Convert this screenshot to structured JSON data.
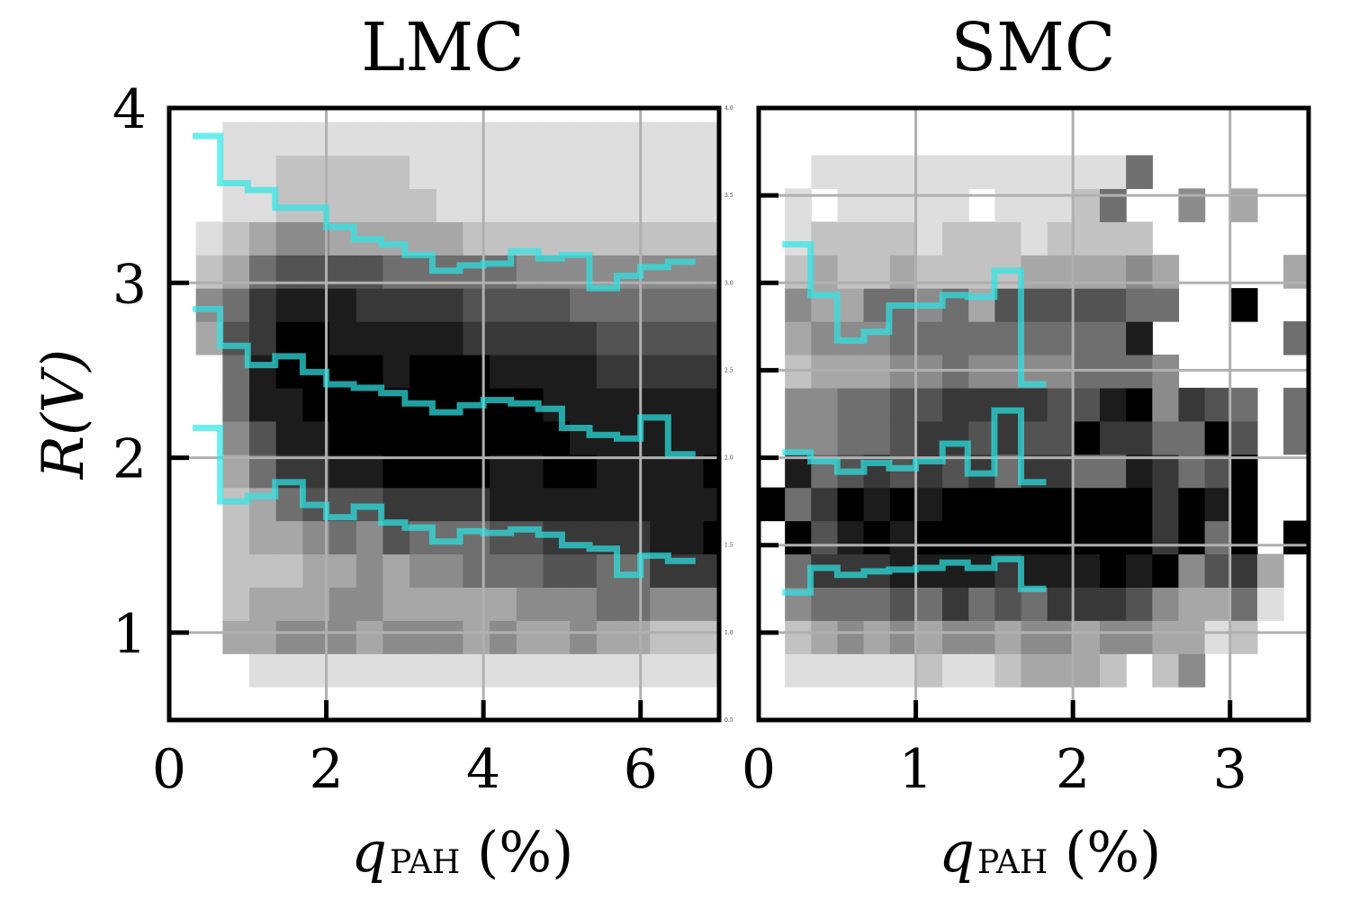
{
  "figure": {
    "ylabel": "R(V)",
    "xlabel_main": "q",
    "xlabel_sub": "PAH",
    "xlabel_unit": "(%)"
  },
  "chart_data": [
    {
      "type": "heatmap",
      "title": "LMC",
      "xlabel": "q_PAH (%)",
      "ylabel": "R(V)",
      "xlim": [
        0,
        7.0
      ],
      "ylim": [
        0.5,
        4.0
      ],
      "xticks": [
        0,
        2,
        4,
        6
      ],
      "yticks": [
        1,
        2,
        3,
        4
      ],
      "grid": true,
      "colormap": "gray_r",
      "x_edges_start": 0.0,
      "x_step": 0.34,
      "y_edges_start": 0.5,
      "y_step": 0.19,
      "density_rows_bottom_to_top": [
        "..............................",
        "00011111111111111111111100",
        "00334443444343343322255321",
        "00233344333334445544423323",
        "0022233434455566557775888865",
        "00233454655566777788999979",
        "00235666777788888888888998",
        "00357788999988998888999997",
        "0046889999999998888888898",
        "0058899999999988888887876",
        "00589999899988887777777666",
        "03679988888777776666655555",
        "0457888777766665555555444",
        "02356666555554444444433332",
        "01234433333222222222211111",
        "00112222221111111111111111",
        "00112222211111111111111111",
        "00111111111111111111111111"
      ],
      "series": [
        {
          "name": "",
          "x": [
            0.3,
            0.65,
            0.65,
            1.0,
            1.0,
            1.35,
            1.35,
            1.7,
            1.7,
            2.0,
            2.0,
            2.35,
            2.35,
            2.7,
            2.7,
            3.0,
            3.0,
            3.35,
            3.35,
            3.7,
            3.7,
            4.0,
            4.0,
            4.35,
            4.35,
            4.7,
            4.7,
            5.0,
            5.0,
            5.35,
            5.35,
            5.7,
            5.7,
            6.0,
            6.0,
            6.35,
            6.35,
            6.7
          ],
          "y": [
            3.84,
            3.84,
            3.57,
            3.57,
            3.53,
            3.53,
            3.43,
            3.43,
            3.43,
            3.43,
            3.32,
            3.32,
            3.25,
            3.25,
            3.22,
            3.22,
            3.16,
            3.16,
            3.07,
            3.07,
            3.1,
            3.1,
            3.11,
            3.11,
            3.18,
            3.18,
            3.14,
            3.14,
            3.16,
            3.16,
            2.97,
            2.97,
            3.04,
            3.04,
            3.09,
            3.09,
            3.12,
            3.12
          ]
        },
        {
          "name": "",
          "x": [
            0.3,
            0.65,
            0.65,
            1.0,
            1.0,
            1.35,
            1.35,
            1.7,
            1.7,
            2.0,
            2.0,
            2.35,
            2.35,
            2.7,
            2.7,
            3.0,
            3.0,
            3.35,
            3.35,
            3.7,
            3.7,
            4.0,
            4.0,
            4.35,
            4.35,
            4.7,
            4.7,
            5.0,
            5.0,
            5.35,
            5.35,
            5.7,
            5.7,
            6.0,
            6.0,
            6.35,
            6.35,
            6.7
          ],
          "y": [
            2.85,
            2.85,
            2.64,
            2.64,
            2.53,
            2.53,
            2.58,
            2.58,
            2.49,
            2.49,
            2.42,
            2.42,
            2.4,
            2.4,
            2.37,
            2.37,
            2.31,
            2.31,
            2.26,
            2.26,
            2.3,
            2.3,
            2.33,
            2.33,
            2.31,
            2.31,
            2.28,
            2.28,
            2.17,
            2.17,
            2.13,
            2.13,
            2.11,
            2.11,
            2.23,
            2.23,
            2.02,
            2.02
          ]
        },
        {
          "name": "",
          "x": [
            0.3,
            0.65,
            0.65,
            1.0,
            1.0,
            1.35,
            1.35,
            1.7,
            1.7,
            2.0,
            2.0,
            2.35,
            2.35,
            2.7,
            2.7,
            3.0,
            3.0,
            3.35,
            3.35,
            3.7,
            3.7,
            4.0,
            4.0,
            4.35,
            4.35,
            4.7,
            4.7,
            5.0,
            5.0,
            5.35,
            5.35,
            5.7,
            5.7,
            6.0,
            6.0,
            6.35,
            6.35,
            6.7
          ],
          "y": [
            2.17,
            2.17,
            1.75,
            1.75,
            1.78,
            1.78,
            1.86,
            1.86,
            1.73,
            1.73,
            1.66,
            1.66,
            1.72,
            1.72,
            1.63,
            1.63,
            1.6,
            1.6,
            1.52,
            1.52,
            1.58,
            1.58,
            1.57,
            1.57,
            1.59,
            1.59,
            1.56,
            1.56,
            1.5,
            1.5,
            1.48,
            1.48,
            1.33,
            1.33,
            1.44,
            1.44,
            1.41,
            1.41
          ]
        }
      ]
    },
    {
      "type": "heatmap",
      "title": "SMC",
      "xlabel": "q_PAH (%)",
      "ylabel": "",
      "xlim": [
        0,
        3.5
      ],
      "ylim": [
        0.5,
        4.0
      ],
      "xticks": [
        0,
        1,
        2,
        3
      ],
      "yticks": [
        1,
        2,
        3,
        4
      ],
      "grid": true,
      "colormap": "gray_r",
      "x_edges_start": 0.0,
      "x_step": 0.167,
      "y_edges_start": 0.5,
      "y_step": 0.19,
      "density_rows_bottom_to_top": [
        "0000000000000000000000",
        "011111211233320240000000",
        "02343434434434433120000000",
        "04555657565777643351030006",
        "05777888878889894673050000",
        "096898999999999795909080900",
        "957989899999999798900000000",
        "085676767577558756900000000",
        "044556776766977559605090000",
        "044556677776689476505050000",
        "02333445444455540000009009",
        "0344455555555580000050000",
        "04335545366666550090000000",
        "02322322223333430000300000",
        "0122221222122220000000009",
        "0101111101112500403000000",
        "0011111111111150000000000",
        "0000000000000000000000000"
      ],
      "series": [
        {
          "name": "",
          "x": [
            0.15,
            0.33,
            0.33,
            0.5,
            0.5,
            0.67,
            0.67,
            0.83,
            0.83,
            1.0,
            1.0,
            1.17,
            1.17,
            1.33,
            1.33,
            1.5,
            1.5,
            1.67,
            1.67,
            1.83
          ],
          "y": [
            3.22,
            3.22,
            2.93,
            2.93,
            2.67,
            2.67,
            2.72,
            2.72,
            2.87,
            2.87,
            2.87,
            2.87,
            2.93,
            2.93,
            2.92,
            2.92,
            3.07,
            3.07,
            2.42,
            2.42
          ]
        },
        {
          "name": "",
          "x": [
            0.15,
            0.33,
            0.33,
            0.5,
            0.5,
            0.67,
            0.67,
            0.83,
            0.83,
            1.0,
            1.0,
            1.17,
            1.17,
            1.33,
            1.33,
            1.5,
            1.5,
            1.67,
            1.67,
            1.83
          ],
          "y": [
            2.03,
            2.03,
            1.98,
            1.98,
            1.92,
            1.92,
            1.97,
            1.97,
            1.94,
            1.94,
            1.98,
            1.98,
            2.08,
            2.08,
            1.91,
            1.91,
            2.27,
            2.27,
            1.86,
            1.86
          ]
        },
        {
          "name": "",
          "x": [
            0.15,
            0.33,
            0.33,
            0.5,
            0.5,
            0.67,
            0.67,
            0.83,
            0.83,
            1.0,
            1.0,
            1.17,
            1.17,
            1.33,
            1.33,
            1.5,
            1.5,
            1.67,
            1.67,
            1.83
          ],
          "y": [
            1.23,
            1.23,
            1.37,
            1.37,
            1.33,
            1.33,
            1.35,
            1.35,
            1.36,
            1.36,
            1.37,
            1.37,
            1.4,
            1.4,
            1.37,
            1.37,
            1.42,
            1.42,
            1.25,
            1.25
          ]
        }
      ]
    }
  ],
  "secondary_axis": {
    "tick_labels": [
      "4.0",
      "3.5",
      "3.0",
      "2.5",
      "2.0",
      "1.5",
      "1.0",
      "0.5"
    ],
    "tick_values": [
      4.0,
      3.5,
      3.0,
      2.5,
      2.0,
      1.5,
      1.0,
      0.5
    ]
  },
  "colors": {
    "line": "#2ee6e6",
    "grid": "#b0b0b0",
    "axes": "#000000"
  }
}
